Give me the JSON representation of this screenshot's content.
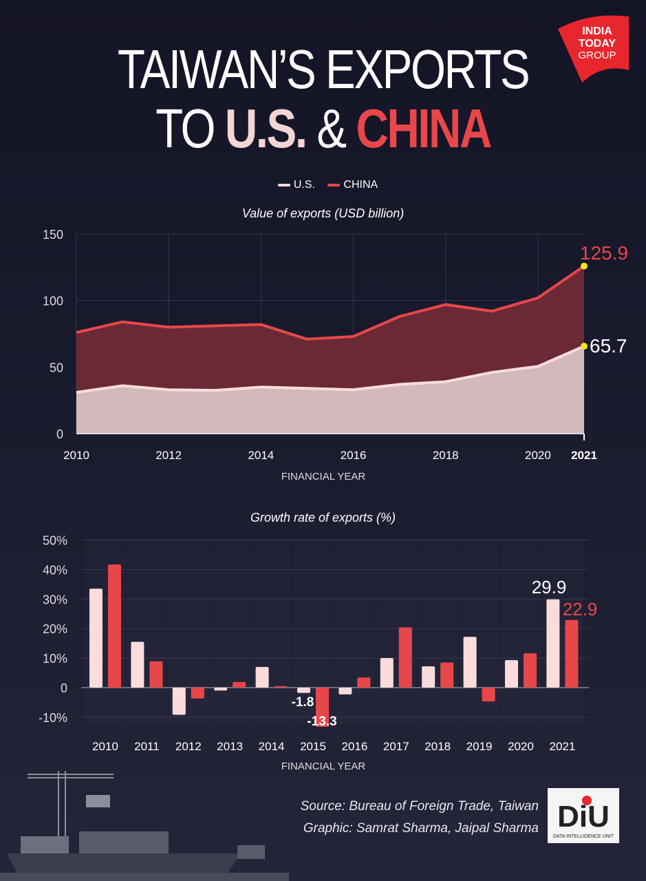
{
  "title": {
    "line1": "TAIWAN’S EXPORTS",
    "line2_to": "TO ",
    "line2_us": "U.S.",
    "line2_amp": " & ",
    "line2_china": "CHINA"
  },
  "publisher_logo": "INDIA TODAY GROUP",
  "colors": {
    "us": "#fbdcdc",
    "china": "#e8474a",
    "highlight": "#f5e51b",
    "us_area": "#d4b9bc",
    "china_area": "#6a2935"
  },
  "chart_data": [
    {
      "type": "area",
      "title": "Value of exports (USD billion)",
      "xlabel": "FINANCIAL YEAR",
      "ylabel": "",
      "ylim": [
        0,
        150
      ],
      "yticks": [
        "0",
        "50",
        "100",
        "150"
      ],
      "xticks": [
        "2010",
        "2012",
        "2014",
        "2016",
        "2018",
        "2020",
        "2021"
      ],
      "legend": "top",
      "grid": true,
      "x": [
        2010,
        2011,
        2012,
        2013,
        2014,
        2015,
        2016,
        2017,
        2018,
        2019,
        2020,
        2021
      ],
      "series": [
        {
          "name": "U.S.",
          "values": [
            31,
            36,
            33,
            32.5,
            35,
            34,
            33,
            37,
            39,
            46,
            50.5,
            65.7
          ]
        },
        {
          "name": "CHINA",
          "values": [
            76,
            84,
            80,
            81,
            82,
            71,
            73,
            88,
            97,
            92,
            102,
            125.9
          ]
        }
      ],
      "annotations": [
        "125.9",
        "65.7"
      ]
    },
    {
      "type": "bar",
      "title": "Growth rate of exports (%)",
      "xlabel": "FINANCIAL YEAR",
      "ylim": [
        -10,
        50
      ],
      "yticks": [
        "-10%",
        "0",
        "10%",
        "20%",
        "30%",
        "40%",
        "50%"
      ],
      "grid": true,
      "categories": [
        "2010",
        "2011",
        "2012",
        "2013",
        "2014",
        "2015",
        "2016",
        "2017",
        "2018",
        "2019",
        "2020",
        "2021"
      ],
      "series": [
        {
          "name": "U.S.",
          "values": [
            33.5,
            15.5,
            -9.2,
            -1,
            7,
            -1.8,
            -2.3,
            10,
            7.2,
            17.2,
            9.3,
            29.9
          ]
        },
        {
          "name": "CHINA",
          "values": [
            41.7,
            8.9,
            -3.7,
            1.9,
            0.5,
            -13.3,
            3.4,
            20.4,
            8.5,
            -4.7,
            11.6,
            22.9
          ]
        }
      ],
      "annotations": [
        "-1.8",
        "-13.3",
        "29.9",
        "22.9"
      ]
    }
  ],
  "source": "Source: Bureau of Foreign Trade, Taiwan",
  "graphic": "Graphic: Samrat Sharma, Jaipal Sharma",
  "diu_logo": "DIU DATA INTELLIGENCE UNIT"
}
